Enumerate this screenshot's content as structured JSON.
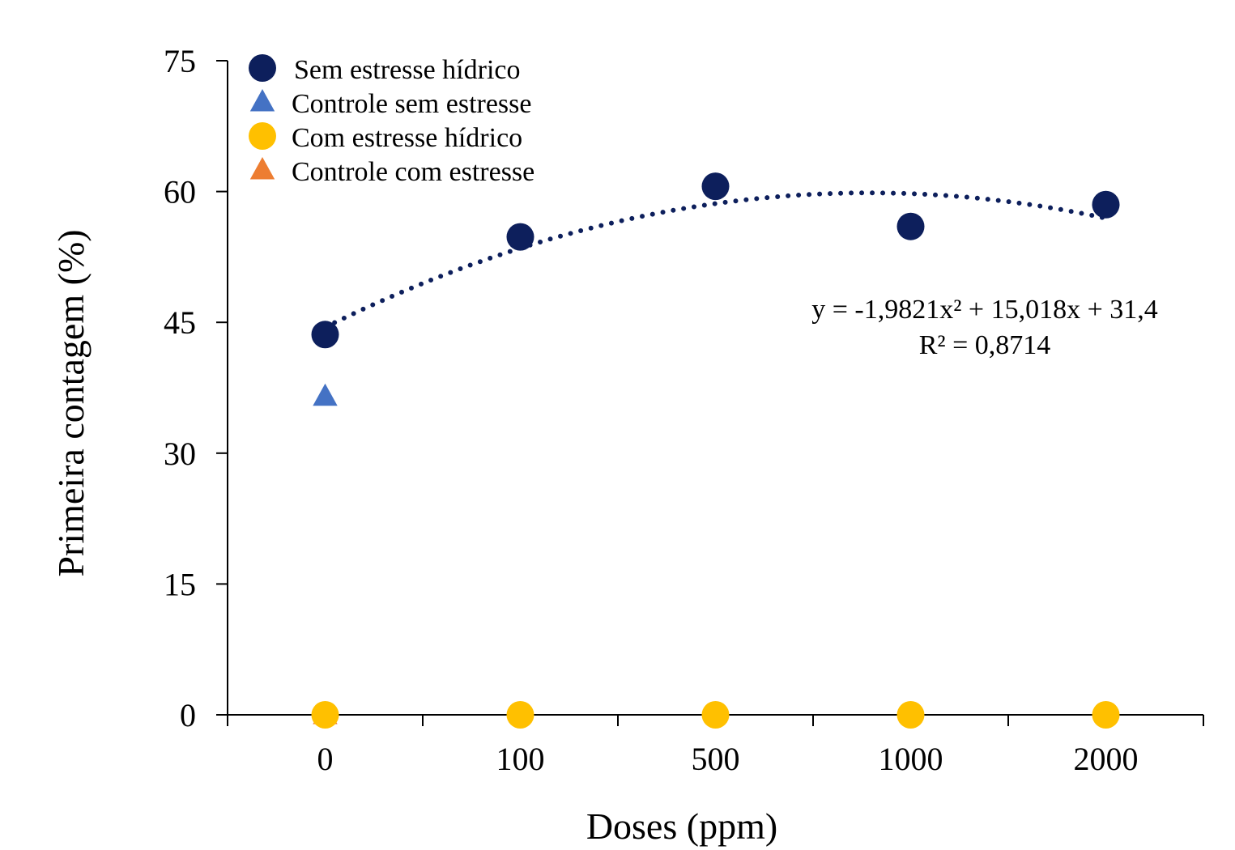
{
  "chart_data": {
    "type": "scatter",
    "xlabel": "Doses (ppm)",
    "ylabel": "Primeira contagem (%)",
    "categories": [
      "0",
      "100",
      "500",
      "1000",
      "2000"
    ],
    "ylim": [
      0,
      75
    ],
    "yticks": [
      0,
      15,
      30,
      45,
      60,
      75
    ],
    "grid": false,
    "legend_position": "top-left",
    "series": [
      {
        "name": "Sem estresse hídrico",
        "marker": "circle",
        "color": "#0d1f5c",
        "points": [
          {
            "x": "0",
            "y": 43.6
          },
          {
            "x": "100",
            "y": 54.8
          },
          {
            "x": "500",
            "y": 60.6
          },
          {
            "x": "1000",
            "y": 56.0
          },
          {
            "x": "2000",
            "y": 58.5
          }
        ]
      },
      {
        "name": "Controle sem estresse",
        "marker": "triangle",
        "color": "#4472c4",
        "points": [
          {
            "x": "0",
            "y": 36.5
          }
        ]
      },
      {
        "name": "Com estresse hídrico",
        "marker": "circle",
        "color": "#ffc000",
        "points": [
          {
            "x": "0",
            "y": 0
          },
          {
            "x": "100",
            "y": 0
          },
          {
            "x": "500",
            "y": 0
          },
          {
            "x": "1000",
            "y": 0
          },
          {
            "x": "2000",
            "y": 0
          }
        ]
      },
      {
        "name": "Controle com estresse",
        "marker": "triangle",
        "color": "#ed7d31",
        "points": [
          {
            "x": "0",
            "y": 0
          }
        ]
      }
    ],
    "trendline": {
      "series": "Sem estresse hídrico",
      "type": "polynomial-2",
      "style": "dotted",
      "color": "#0d1f5c",
      "coefficients": {
        "a": -1.9821,
        "b": 15.018,
        "c": 31.4
      },
      "equation": "y = -1,9821x² + 15,018x + 31,4",
      "r_squared": "R² = 0,8714"
    }
  }
}
